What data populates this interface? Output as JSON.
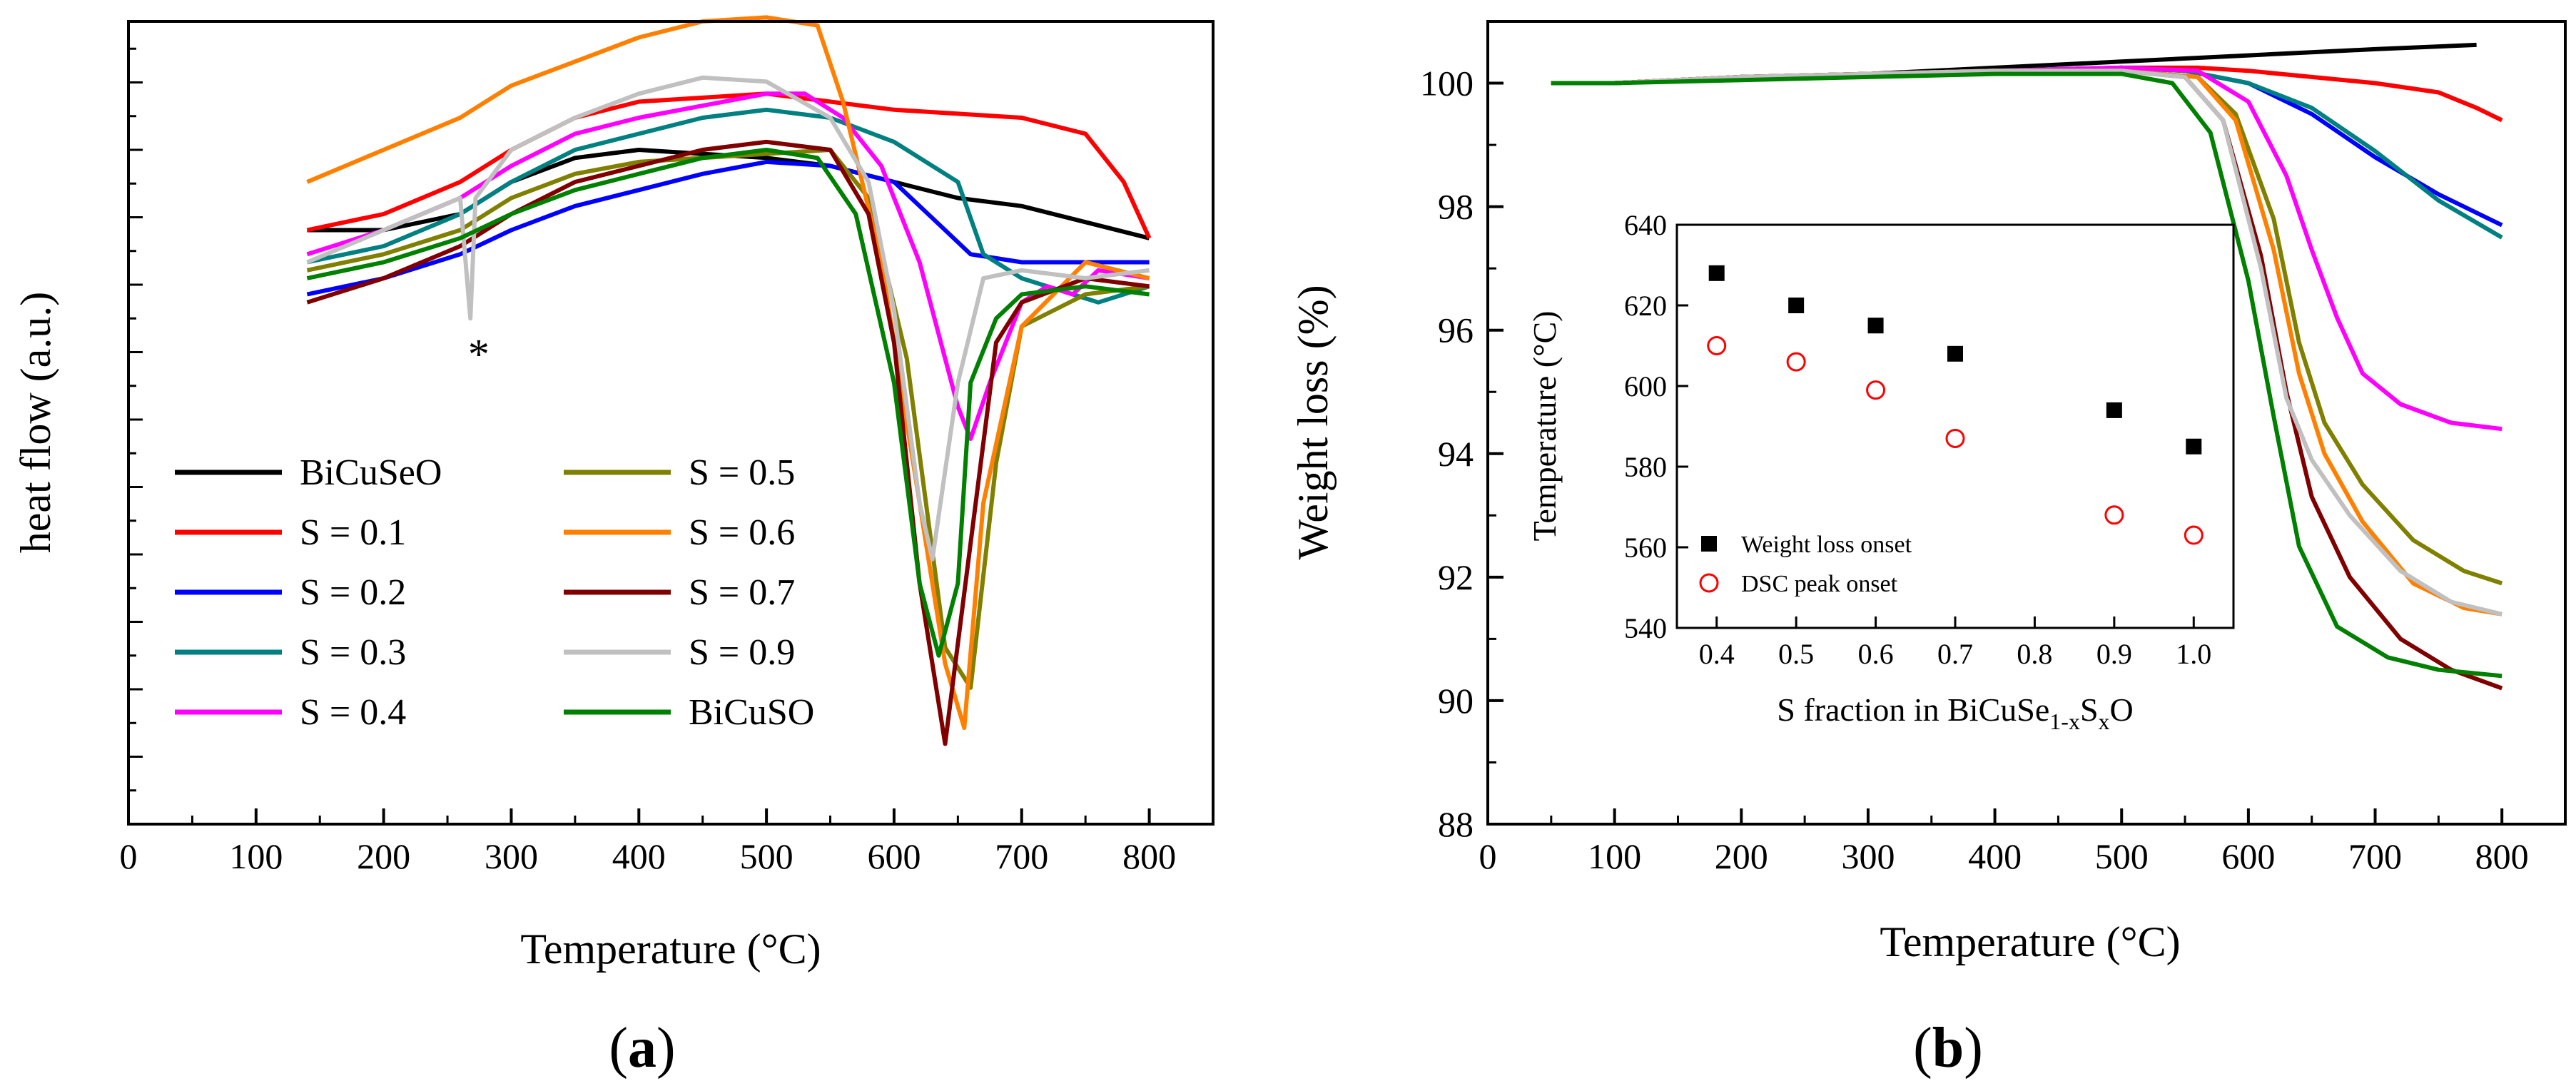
{
  "chart_data": [
    {
      "type": "line",
      "panel_label": "a",
      "xlabel": "Temperature (°C)",
      "ylabel": "heat flow (a.u.)",
      "xlim": [
        0,
        850
      ],
      "ylim": [
        0,
        100
      ],
      "x_ticks": [
        0,
        100,
        200,
        300,
        400,
        500,
        600,
        700,
        800
      ],
      "annotation": "*",
      "annotation_at": [
        270,
        63
      ],
      "legend_position": "lower-left",
      "y_axis_numeric_ticks_shown": false,
      "series": [
        {
          "name": "BiCuSeO",
          "color": "#000000",
          "x": [
            140,
            200,
            260,
            300,
            350,
            400,
            450,
            500,
            550,
            600,
            650,
            700,
            750,
            800
          ],
          "y": [
            74,
            74,
            76,
            80,
            83,
            84,
            83.5,
            83,
            82,
            80,
            78,
            77,
            75,
            73
          ]
        },
        {
          "name": "S = 0.1",
          "color": "#ff0000",
          "x": [
            140,
            200,
            260,
            300,
            350,
            400,
            450,
            500,
            550,
            600,
            650,
            700,
            750,
            780,
            800
          ],
          "y": [
            74,
            76,
            80,
            84,
            88,
            90,
            90.5,
            91,
            90,
            89,
            88.5,
            88,
            86,
            80,
            73
          ]
        },
        {
          "name": "S = 0.2",
          "color": "#0000ff",
          "x": [
            140,
            200,
            260,
            300,
            350,
            400,
            450,
            500,
            550,
            600,
            640,
            660,
            700,
            750,
            800
          ],
          "y": [
            66,
            68,
            71,
            74,
            77,
            79,
            81,
            82.5,
            82,
            80,
            74,
            71,
            70,
            70,
            70
          ]
        },
        {
          "name": "S = 0.3",
          "color": "#008080",
          "x": [
            140,
            200,
            260,
            300,
            350,
            400,
            450,
            500,
            550,
            600,
            650,
            670,
            700,
            740,
            760,
            800
          ],
          "y": [
            70,
            72,
            76,
            80,
            84,
            86,
            88,
            89,
            88,
            85,
            80,
            71,
            68,
            66,
            65,
            67
          ]
        },
        {
          "name": "S = 0.4",
          "color": "#ff00ff",
          "x": [
            140,
            200,
            260,
            300,
            350,
            400,
            450,
            500,
            530,
            560,
            590,
            620,
            650,
            660,
            675,
            700,
            720,
            740,
            760,
            800
          ],
          "y": [
            71,
            74,
            78,
            82,
            86,
            88,
            89.5,
            91,
            91,
            88,
            82,
            70,
            52,
            48,
            55,
            65,
            67,
            66,
            69,
            68
          ]
        },
        {
          "name": "S = 0.5",
          "color": "#808000",
          "x": [
            140,
            200,
            260,
            300,
            350,
            400,
            450,
            500,
            550,
            580,
            610,
            640,
            660,
            680,
            700,
            750,
            800
          ],
          "y": [
            69,
            71,
            74,
            78,
            81,
            82.5,
            83,
            83.5,
            84,
            78,
            58,
            22,
            17,
            45,
            62,
            66,
            67
          ]
        },
        {
          "name": "S = 0.6",
          "color": "#ff8000",
          "x": [
            140,
            200,
            260,
            300,
            350,
            400,
            450,
            500,
            540,
            560,
            590,
            620,
            640,
            655,
            670,
            700,
            750,
            800
          ],
          "y": [
            80,
            84,
            88,
            92,
            95,
            98,
            100,
            100.5,
            99.5,
            90,
            70,
            40,
            20,
            12,
            40,
            62,
            70,
            68
          ]
        },
        {
          "name": "S = 0.7",
          "color": "#800000",
          "x": [
            140,
            200,
            260,
            300,
            350,
            400,
            450,
            500,
            550,
            580,
            600,
            620,
            640,
            660,
            680,
            700,
            750,
            800
          ],
          "y": [
            65,
            68,
            72,
            76,
            80,
            82,
            84,
            85,
            84,
            76,
            60,
            30,
            10,
            35,
            60,
            65,
            68,
            67
          ]
        },
        {
          "name": "S = 0.9",
          "color": "#c0c0c0",
          "x": [
            140,
            200,
            260,
            268,
            272,
            300,
            350,
            400,
            450,
            500,
            550,
            580,
            600,
            620,
            630,
            650,
            670,
            700,
            750,
            800
          ],
          "y": [
            70,
            74,
            78,
            63,
            78,
            84,
            88,
            91,
            93,
            92.5,
            88,
            80,
            64,
            40,
            33,
            55,
            68,
            69,
            68,
            69
          ]
        },
        {
          "name": "BiCuSO",
          "color": "#008000",
          "x": [
            140,
            200,
            260,
            300,
            350,
            400,
            450,
            500,
            540,
            570,
            600,
            620,
            635,
            650,
            660,
            680,
            700,
            750,
            800
          ],
          "y": [
            68,
            70,
            73,
            76,
            79,
            81,
            83,
            84,
            83,
            76,
            55,
            30,
            21,
            30,
            55,
            63,
            66,
            67,
            66
          ]
        }
      ]
    },
    {
      "type": "line",
      "panel_label": "b",
      "xlabel": "Temperature (°C)",
      "ylabel": "Weight loss (%)",
      "xlim": [
        0,
        850
      ],
      "ylim": [
        88,
        101
      ],
      "x_ticks": [
        0,
        100,
        200,
        300,
        400,
        500,
        600,
        700,
        800
      ],
      "y_ticks": [
        88,
        90,
        92,
        94,
        96,
        98,
        100
      ],
      "series": [
        {
          "name": "BiCuSeO",
          "color": "#000000",
          "x": [
            50,
            100,
            200,
            300,
            400,
            500,
            600,
            700,
            780
          ],
          "y": [
            100.0,
            100.0,
            100.1,
            100.15,
            100.25,
            100.35,
            100.45,
            100.55,
            100.62
          ]
        },
        {
          "name": "S = 0.1",
          "color": "#ff0000",
          "x": [
            50,
            100,
            200,
            300,
            400,
            500,
            560,
            600,
            650,
            700,
            750,
            780,
            800
          ],
          "y": [
            100.0,
            100.0,
            100.1,
            100.15,
            100.2,
            100.25,
            100.25,
            100.2,
            100.1,
            100.0,
            99.85,
            99.6,
            99.4
          ]
        },
        {
          "name": "S = 0.2",
          "color": "#0000ff",
          "x": [
            50,
            100,
            200,
            300,
            400,
            500,
            550,
            600,
            650,
            700,
            750,
            800
          ],
          "y": [
            100.0,
            100.0,
            100.1,
            100.15,
            100.2,
            100.25,
            100.2,
            100.0,
            99.5,
            98.8,
            98.2,
            97.7
          ]
        },
        {
          "name": "S = 0.3",
          "color": "#008080",
          "x": [
            50,
            100,
            200,
            300,
            400,
            500,
            550,
            600,
            650,
            700,
            750,
            800
          ],
          "y": [
            100.0,
            100.0,
            100.1,
            100.15,
            100.2,
            100.25,
            100.2,
            100.0,
            99.6,
            98.9,
            98.1,
            97.5
          ]
        },
        {
          "name": "S = 0.4",
          "color": "#ff00ff",
          "x": [
            50,
            100,
            200,
            300,
            400,
            500,
            560,
            600,
            630,
            650,
            670,
            690,
            720,
            760,
            800
          ],
          "y": [
            100.0,
            100.0,
            100.1,
            100.15,
            100.2,
            100.25,
            100.2,
            99.7,
            98.5,
            97.3,
            96.2,
            95.3,
            94.8,
            94.5,
            94.4
          ]
        },
        {
          "name": "S = 0.5",
          "color": "#808000",
          "x": [
            50,
            100,
            200,
            300,
            400,
            500,
            560,
            590,
            620,
            640,
            660,
            690,
            730,
            770,
            800
          ],
          "y": [
            100.0,
            100.0,
            100.1,
            100.15,
            100.2,
            100.2,
            100.1,
            99.5,
            97.8,
            95.8,
            94.5,
            93.5,
            92.6,
            92.1,
            91.9
          ]
        },
        {
          "name": "S = 0.6",
          "color": "#ff8000",
          "x": [
            50,
            100,
            200,
            300,
            400,
            500,
            560,
            590,
            620,
            640,
            660,
            690,
            730,
            770,
            800
          ],
          "y": [
            100.0,
            100.0,
            100.1,
            100.15,
            100.2,
            100.2,
            100.1,
            99.4,
            97.3,
            95.3,
            94.0,
            92.9,
            91.9,
            91.5,
            91.4
          ]
        },
        {
          "name": "S = 0.7",
          "color": "#800000",
          "x": [
            50,
            100,
            200,
            300,
            400,
            500,
            550,
            580,
            610,
            630,
            650,
            680,
            720,
            760,
            800
          ],
          "y": [
            100.0,
            100.0,
            100.1,
            100.15,
            100.2,
            100.2,
            100.1,
            99.4,
            97.2,
            95.0,
            93.3,
            92.0,
            91.0,
            90.5,
            90.2
          ]
        },
        {
          "name": "S = 0.9",
          "color": "#c0c0c0",
          "x": [
            50,
            100,
            200,
            300,
            400,
            500,
            550,
            580,
            610,
            630,
            650,
            680,
            720,
            760,
            800
          ],
          "y": [
            100.0,
            100.0,
            100.1,
            100.15,
            100.2,
            100.2,
            100.1,
            99.4,
            97.0,
            94.9,
            93.9,
            93.0,
            92.1,
            91.6,
            91.4
          ]
        },
        {
          "name": "BiCuSO",
          "color": "#008000",
          "x": [
            50,
            100,
            200,
            300,
            400,
            500,
            540,
            570,
            600,
            620,
            640,
            670,
            710,
            750,
            800
          ],
          "y": [
            100.0,
            100.0,
            100.05,
            100.1,
            100.15,
            100.15,
            100.0,
            99.2,
            96.8,
            94.6,
            92.5,
            91.2,
            90.7,
            90.5,
            90.4
          ]
        }
      ]
    },
    {
      "type": "scatter",
      "inset_of": "b",
      "xlabel": "S fraction in BiCuSe",
      "xlabel_sub1": "1-x",
      "xlabel_mid": "S",
      "xlabel_sub2": "x",
      "xlabel_end": "O",
      "ylabel": "Temperature (°C)",
      "xlim": [
        0.35,
        1.05
      ],
      "ylim": [
        540,
        640
      ],
      "x_ticks": [
        0.4,
        0.5,
        0.6,
        0.7,
        0.8,
        0.9,
        1.0
      ],
      "y_ticks": [
        540,
        560,
        580,
        600,
        620,
        640
      ],
      "legend_position": "bottom-left",
      "series": [
        {
          "name": "Weight loss onset",
          "marker": "filled-square",
          "color": "#000000",
          "x": [
            0.4,
            0.5,
            0.6,
            0.7,
            0.9,
            1.0
          ],
          "y": [
            628,
            620,
            615,
            608,
            594,
            585
          ]
        },
        {
          "name": "DSC peak onset",
          "marker": "open-circle",
          "color": "#ff0000",
          "x": [
            0.4,
            0.5,
            0.6,
            0.7,
            0.9,
            1.0
          ],
          "y": [
            610,
            606,
            599,
            587,
            568,
            563
          ]
        }
      ]
    }
  ],
  "legend_a": {
    "col1": [
      "BiCuSeO",
      "S = 0.1",
      "S = 0.2",
      "S = 0.3",
      "S = 0.4"
    ],
    "col2": [
      "S = 0.5",
      "S = 0.6",
      "S = 0.7",
      "S = 0.9",
      "BiCuSO"
    ]
  }
}
